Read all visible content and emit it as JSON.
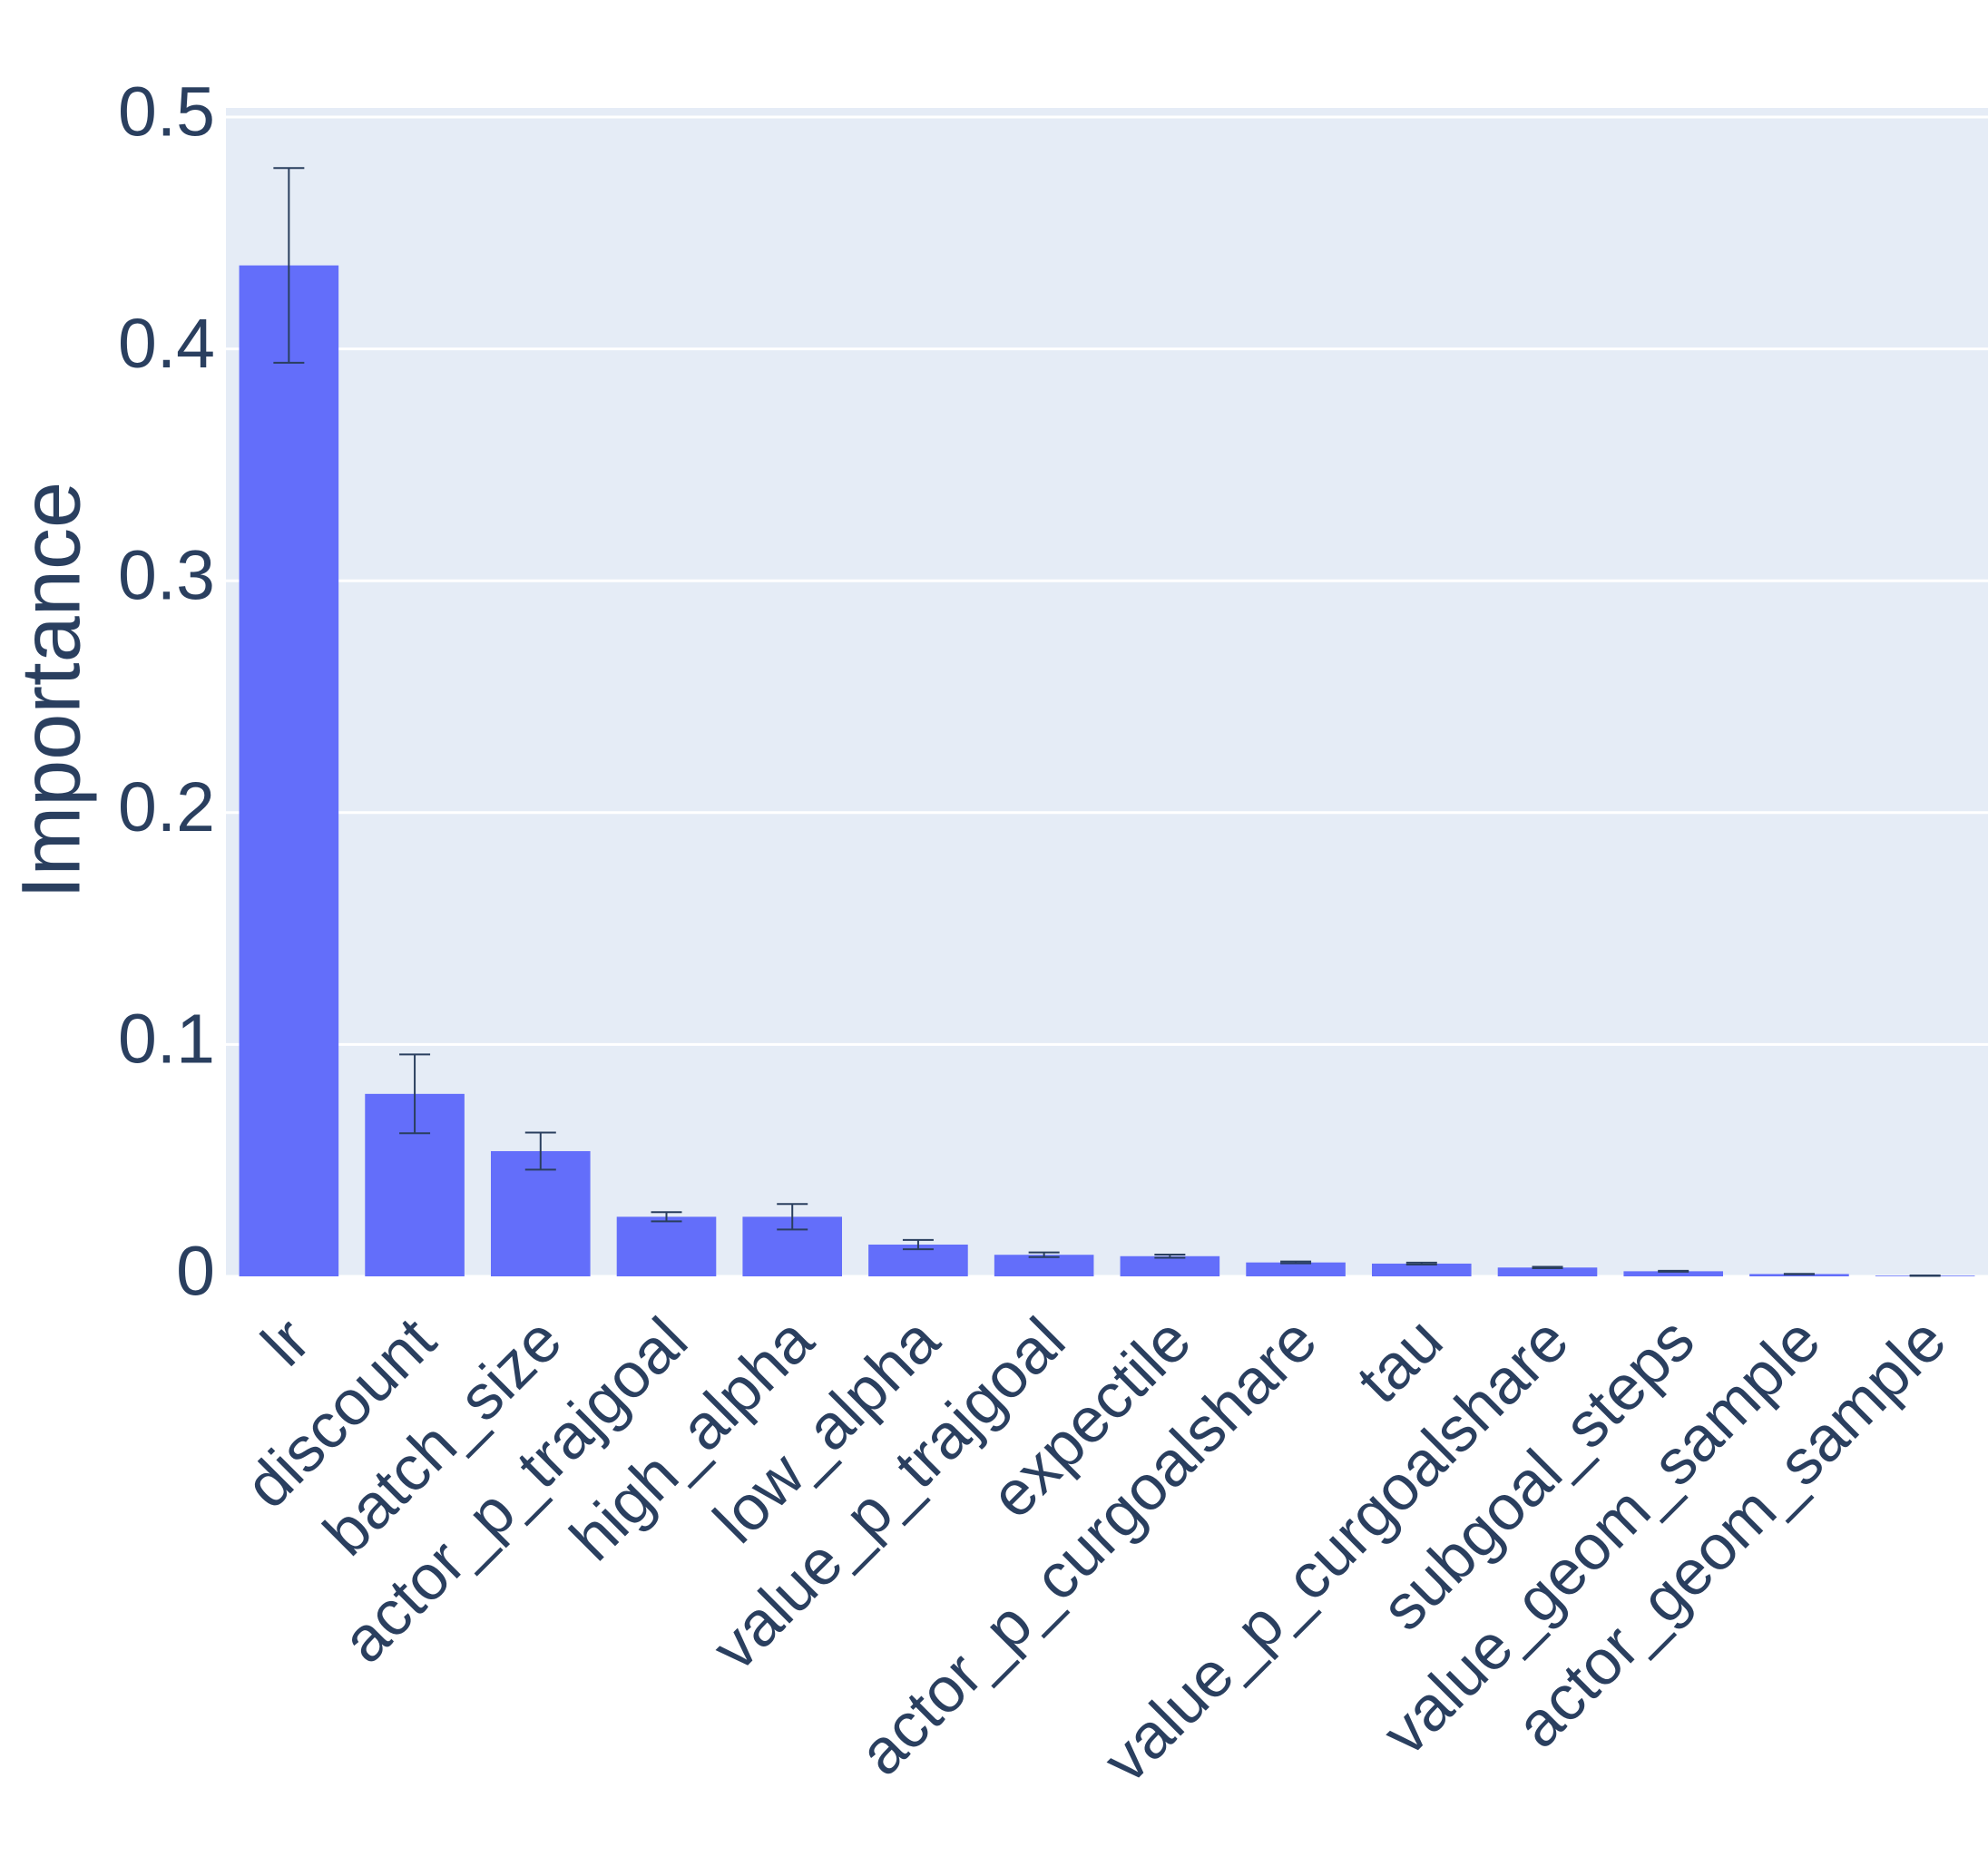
{
  "chart_data": {
    "type": "bar",
    "y_label": "Importance",
    "categories": [
      "lr",
      "discount",
      "batch_size",
      "actor_p_trajgoal",
      "high_alpha",
      "low_alpha",
      "value_p_trajgoal",
      "expectile",
      "actor_p_curgoalshare",
      "tau",
      "value_p_curgoalshare",
      "subgoal_steps",
      "value_geom_sample",
      "actor_geom_sample"
    ],
    "values": [
      0.436,
      0.0787,
      0.054,
      0.0257,
      0.0257,
      0.0137,
      0.0093,
      0.0087,
      0.006,
      0.0055,
      0.0038,
      0.0022,
      0.001,
      0.0003
    ],
    "error": [
      0.042,
      0.017,
      0.008,
      0.002,
      0.0055,
      0.002,
      0.001,
      0.0007,
      0.0004,
      0.0004,
      0.0003,
      0.0002,
      0.0001,
      0.0001
    ],
    "color": "#636efa",
    "error_color": "#2a3f5f",
    "ylim": [
      0,
      0.5
    ],
    "yticks": [
      0,
      0.1,
      0.2,
      0.3,
      0.4,
      0.5
    ],
    "grid": true
  }
}
